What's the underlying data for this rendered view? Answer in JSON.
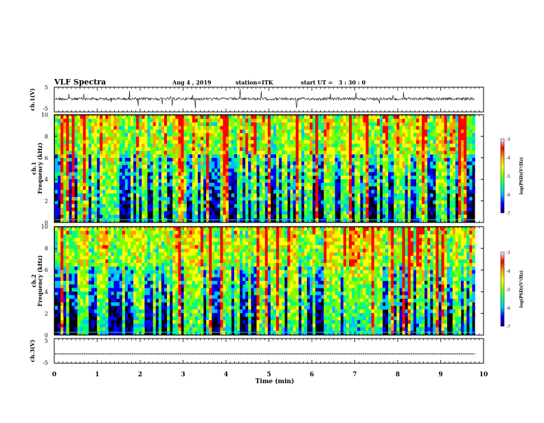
{
  "header": {
    "title": "VLF Spectra",
    "date": "Aug 4 , 2019",
    "station": "station=ITK",
    "start_ut": "start UT =   3 : 30 : 0"
  },
  "colorbar": {
    "label": "log(PSD)(V²/Hz)",
    "ticks": [
      "-3",
      "-4",
      "-5",
      "-6",
      "-7"
    ],
    "colors": [
      "#000080",
      "#0000ff",
      "#00c0ff",
      "#00ff80",
      "#80ff00",
      "#ffff00",
      "#ffa000",
      "#ff0000",
      "#ffffff"
    ]
  },
  "chart_data": [
    {
      "type": "line",
      "panel": "ch1-waveform",
      "ylabel": "ch.1(V)",
      "ylim": [
        -5,
        5
      ],
      "ytick_labels": [
        "5",
        "-5"
      ],
      "xlim": [
        0,
        10
      ],
      "description_values": {
        "baseline": 0,
        "typical_noise": 0.6,
        "spike_max": 5
      }
    },
    {
      "type": "heatmap",
      "panel": "ch1-spectrogram",
      "ylabel": "ch.1\nFrequency (kHz)",
      "ylim": [
        0,
        10
      ],
      "ytick_labels": [
        "0",
        "2",
        "4",
        "6",
        "8",
        "10"
      ],
      "xlim": [
        0,
        9.8
      ],
      "zlim": [
        -7,
        -3
      ],
      "zlabel": "log(PSD)(V²/Hz)"
    },
    {
      "type": "heatmap",
      "panel": "ch2-spectrogram",
      "ylabel": "ch.2\nFrequency (kHz)",
      "ylim": [
        0,
        10
      ],
      "ytick_labels": [
        "0",
        "2",
        "4",
        "6",
        "8",
        "10"
      ],
      "xlim": [
        0,
        9.8
      ],
      "zlim": [
        -7,
        -3
      ],
      "zlabel": "log(PSD)(V²/Hz)"
    },
    {
      "type": "line",
      "panel": "ch3-waveform",
      "ylabel": "ch.3(V)",
      "ylim": [
        -5,
        5
      ],
      "ytick_labels": [
        "5",
        "-5"
      ],
      "xlim": [
        0,
        10
      ],
      "description_values": {
        "baseline": -1.2
      }
    }
  ],
  "xaxis": {
    "label": "Time (min)",
    "ticks": [
      "0",
      "1",
      "2",
      "3",
      "4",
      "5",
      "6",
      "7",
      "8",
      "9",
      "10"
    ]
  }
}
